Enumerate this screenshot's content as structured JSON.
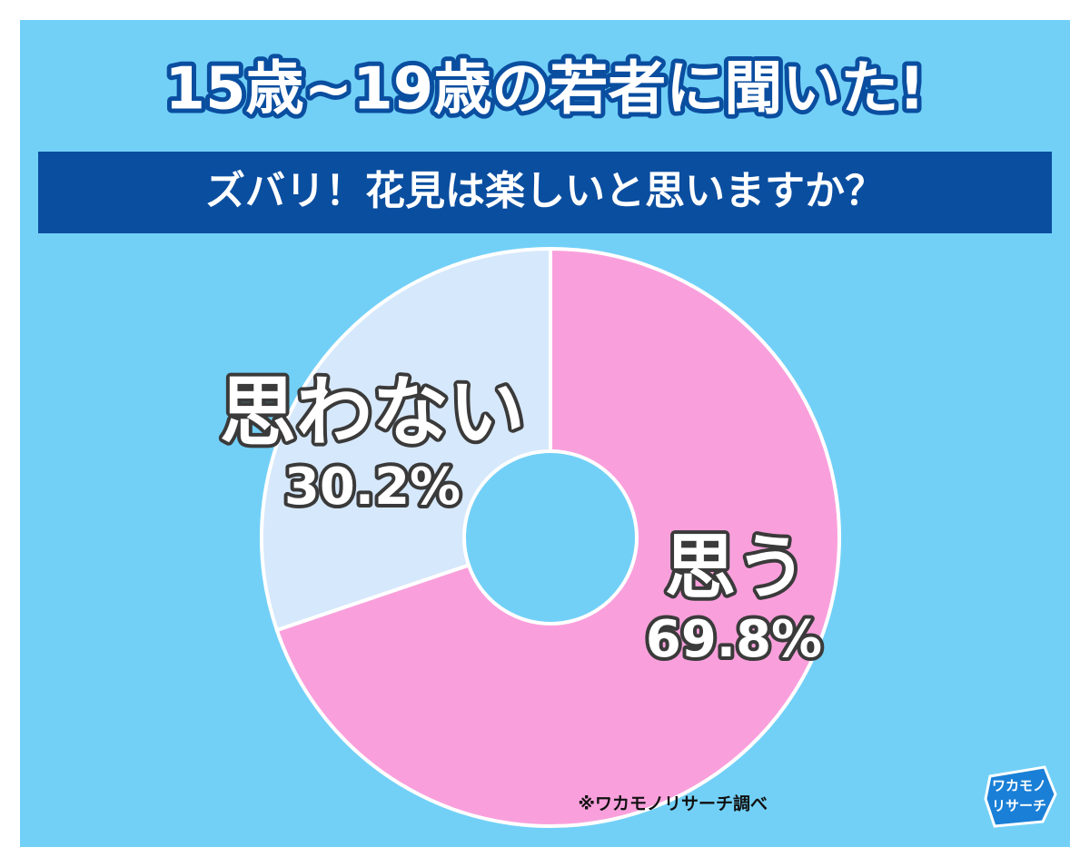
{
  "chart_data": {
    "type": "pie",
    "donut": true,
    "title": "15歳~19歳の若者に聞いた!",
    "subtitle": "ズバリ！花見は楽しいと思いますか？",
    "categories": [
      "思う",
      "思わない"
    ],
    "values": [
      69.8,
      30.2
    ],
    "value_labels": [
      "69.8%",
      "30.2%"
    ],
    "colors": [
      "#f9a0dc",
      "#d6e8fb"
    ],
    "source": "※ワカモノリサーチ調べ",
    "logo": [
      "ワカモノ",
      "リサーチ"
    ]
  }
}
